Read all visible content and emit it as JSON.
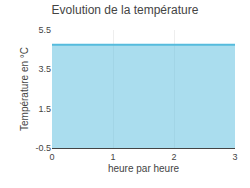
{
  "chart_data": {
    "type": "area",
    "title": "Evolution de la température",
    "x_label": "heure par heure",
    "y_label": "Température en °C",
    "x": [
      0,
      3
    ],
    "values": [
      4.75,
      4.75
    ],
    "color": "#55bbdd",
    "xlim": [
      0,
      3
    ],
    "xticks": [
      0,
      1,
      2,
      3
    ],
    "ylim": [
      -0.5,
      5.5
    ],
    "yticks": [
      -0.5,
      1.5,
      3.5,
      5.5
    ],
    "grid": "x"
  }
}
